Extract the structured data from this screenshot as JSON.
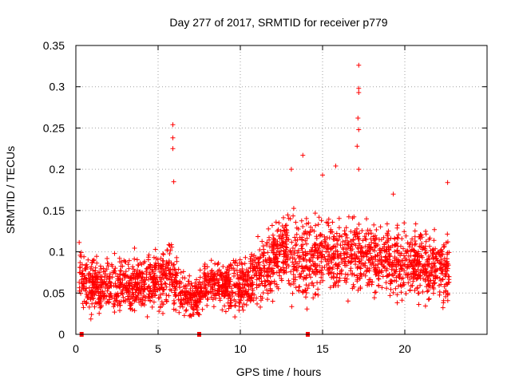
{
  "chart_data": {
    "type": "scatter",
    "title": "Day 277 of 2017, SRMTID for receiver p779",
    "xlabel": "GPS time / hours",
    "ylabel": "SRMTID / TECUs",
    "xlim": [
      0,
      25
    ],
    "ylim": [
      0,
      0.35
    ],
    "xticks": [
      0,
      5,
      10,
      15,
      20
    ],
    "xtick_labels": [
      "0",
      "5",
      "10",
      "15",
      "20"
    ],
    "yticks": [
      0,
      0.05,
      0.1,
      0.15,
      0.2,
      0.25,
      0.3,
      0.35
    ],
    "ytick_labels": [
      "0",
      "0.05",
      "0.1",
      "0.15",
      "0.2",
      "0.25",
      "0.3",
      "0.35"
    ],
    "grid": true,
    "marker": "+",
    "color": "#ff0000",
    "data_span_hours": [
      0.2,
      22.7
    ],
    "notable_points": [
      {
        "x": 5.9,
        "y": 0.254
      },
      {
        "x": 5.9,
        "y": 0.238
      },
      {
        "x": 5.9,
        "y": 0.225
      },
      {
        "x": 5.95,
        "y": 0.185
      },
      {
        "x": 13.1,
        "y": 0.2
      },
      {
        "x": 13.8,
        "y": 0.217
      },
      {
        "x": 15.0,
        "y": 0.193
      },
      {
        "x": 15.8,
        "y": 0.204
      },
      {
        "x": 17.2,
        "y": 0.326
      },
      {
        "x": 17.2,
        "y": 0.298
      },
      {
        "x": 17.2,
        "y": 0.293
      },
      {
        "x": 17.15,
        "y": 0.262
      },
      {
        "x": 17.2,
        "y": 0.248
      },
      {
        "x": 17.1,
        "y": 0.228
      },
      {
        "x": 17.2,
        "y": 0.2
      },
      {
        "x": 19.3,
        "y": 0.17
      },
      {
        "x": 22.6,
        "y": 0.184
      }
    ],
    "envelope": [
      {
        "x": 0.2,
        "mean": 0.075,
        "spread": 0.035
      },
      {
        "x": 1.0,
        "mean": 0.06,
        "spread": 0.03
      },
      {
        "x": 3.0,
        "mean": 0.06,
        "spread": 0.028
      },
      {
        "x": 4.5,
        "mean": 0.06,
        "spread": 0.03
      },
      {
        "x": 5.5,
        "mean": 0.075,
        "spread": 0.035
      },
      {
        "x": 6.5,
        "mean": 0.05,
        "spread": 0.025
      },
      {
        "x": 7.3,
        "mean": 0.045,
        "spread": 0.02
      },
      {
        "x": 8.0,
        "mean": 0.06,
        "spread": 0.025
      },
      {
        "x": 10.0,
        "mean": 0.06,
        "spread": 0.028
      },
      {
        "x": 11.0,
        "mean": 0.07,
        "spread": 0.03
      },
      {
        "x": 12.5,
        "mean": 0.1,
        "spread": 0.04
      },
      {
        "x": 14.0,
        "mean": 0.09,
        "spread": 0.045
      },
      {
        "x": 16.5,
        "mean": 0.1,
        "spread": 0.04
      },
      {
        "x": 18.5,
        "mean": 0.09,
        "spread": 0.035
      },
      {
        "x": 20.5,
        "mean": 0.085,
        "spread": 0.035
      },
      {
        "x": 22.7,
        "mean": 0.08,
        "spread": 0.035
      }
    ],
    "gap_markers_hours": [
      0.35,
      7.5,
      14.1
    ],
    "n_points": 2600
  }
}
